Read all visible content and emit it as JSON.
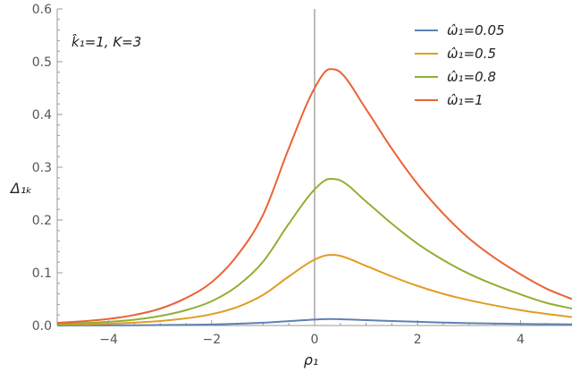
{
  "chart_data": {
    "type": "line",
    "annotation": "k̂₁=1, K=3",
    "xlabel": "ρ₁",
    "ylabel": "Δ₁ₖ",
    "xlim": [
      -5,
      5
    ],
    "ylim": [
      0,
      0.6
    ],
    "xticks": [
      -4,
      -2,
      0,
      2,
      4
    ],
    "xtick_labels": [
      "−4",
      "−2",
      "0",
      "2",
      "4"
    ],
    "yticks": [
      0.0,
      0.1,
      0.2,
      0.3,
      0.4,
      0.5,
      0.6
    ],
    "ytick_labels": [
      "0.0",
      "0.1",
      "0.2",
      "0.3",
      "0.4",
      "0.5",
      "0.6"
    ],
    "grid": false,
    "legend_position": "top-right",
    "x": [
      -5,
      -4.5,
      -4,
      -3.5,
      -3,
      -2.5,
      -2,
      -1.5,
      -1,
      -0.5,
      0,
      0.3,
      0.5,
      1,
      1.5,
      2,
      2.5,
      3,
      3.5,
      4,
      4.5,
      5
    ],
    "series": [
      {
        "name": "ω̂₁=0.05",
        "color": "#5e81b5",
        "values": [
          0.0001,
          0.0002,
          0.0003,
          0.0005,
          0.0008,
          0.0013,
          0.002,
          0.0033,
          0.0052,
          0.0082,
          0.0112,
          0.0122,
          0.0119,
          0.0102,
          0.0085,
          0.007,
          0.0056,
          0.0045,
          0.0037,
          0.003,
          0.0025,
          0.002
        ]
      },
      {
        "name": "ω̂₁=0.5",
        "color": "#e19c24",
        "values": [
          0.0014,
          0.0022,
          0.0035,
          0.0055,
          0.0085,
          0.0135,
          0.0215,
          0.035,
          0.058,
          0.093,
          0.125,
          0.134,
          0.132,
          0.113,
          0.093,
          0.075,
          0.06,
          0.048,
          0.038,
          0.029,
          0.022,
          0.016
        ]
      },
      {
        "name": "ω̂₁=0.8",
        "color": "#8fb032",
        "values": [
          0.0029,
          0.0045,
          0.007,
          0.011,
          0.018,
          0.029,
          0.046,
          0.075,
          0.121,
          0.193,
          0.258,
          0.278,
          0.275,
          0.235,
          0.193,
          0.155,
          0.124,
          0.098,
          0.077,
          0.059,
          0.043,
          0.032
        ]
      },
      {
        "name": "ω̂₁=1",
        "color": "#eb6235",
        "values": [
          0.005,
          0.008,
          0.0125,
          0.02,
          0.032,
          0.052,
          0.082,
          0.133,
          0.21,
          0.336,
          0.45,
          0.486,
          0.48,
          0.41,
          0.335,
          0.268,
          0.212,
          0.165,
          0.128,
          0.097,
          0.07,
          0.05
        ]
      }
    ]
  }
}
